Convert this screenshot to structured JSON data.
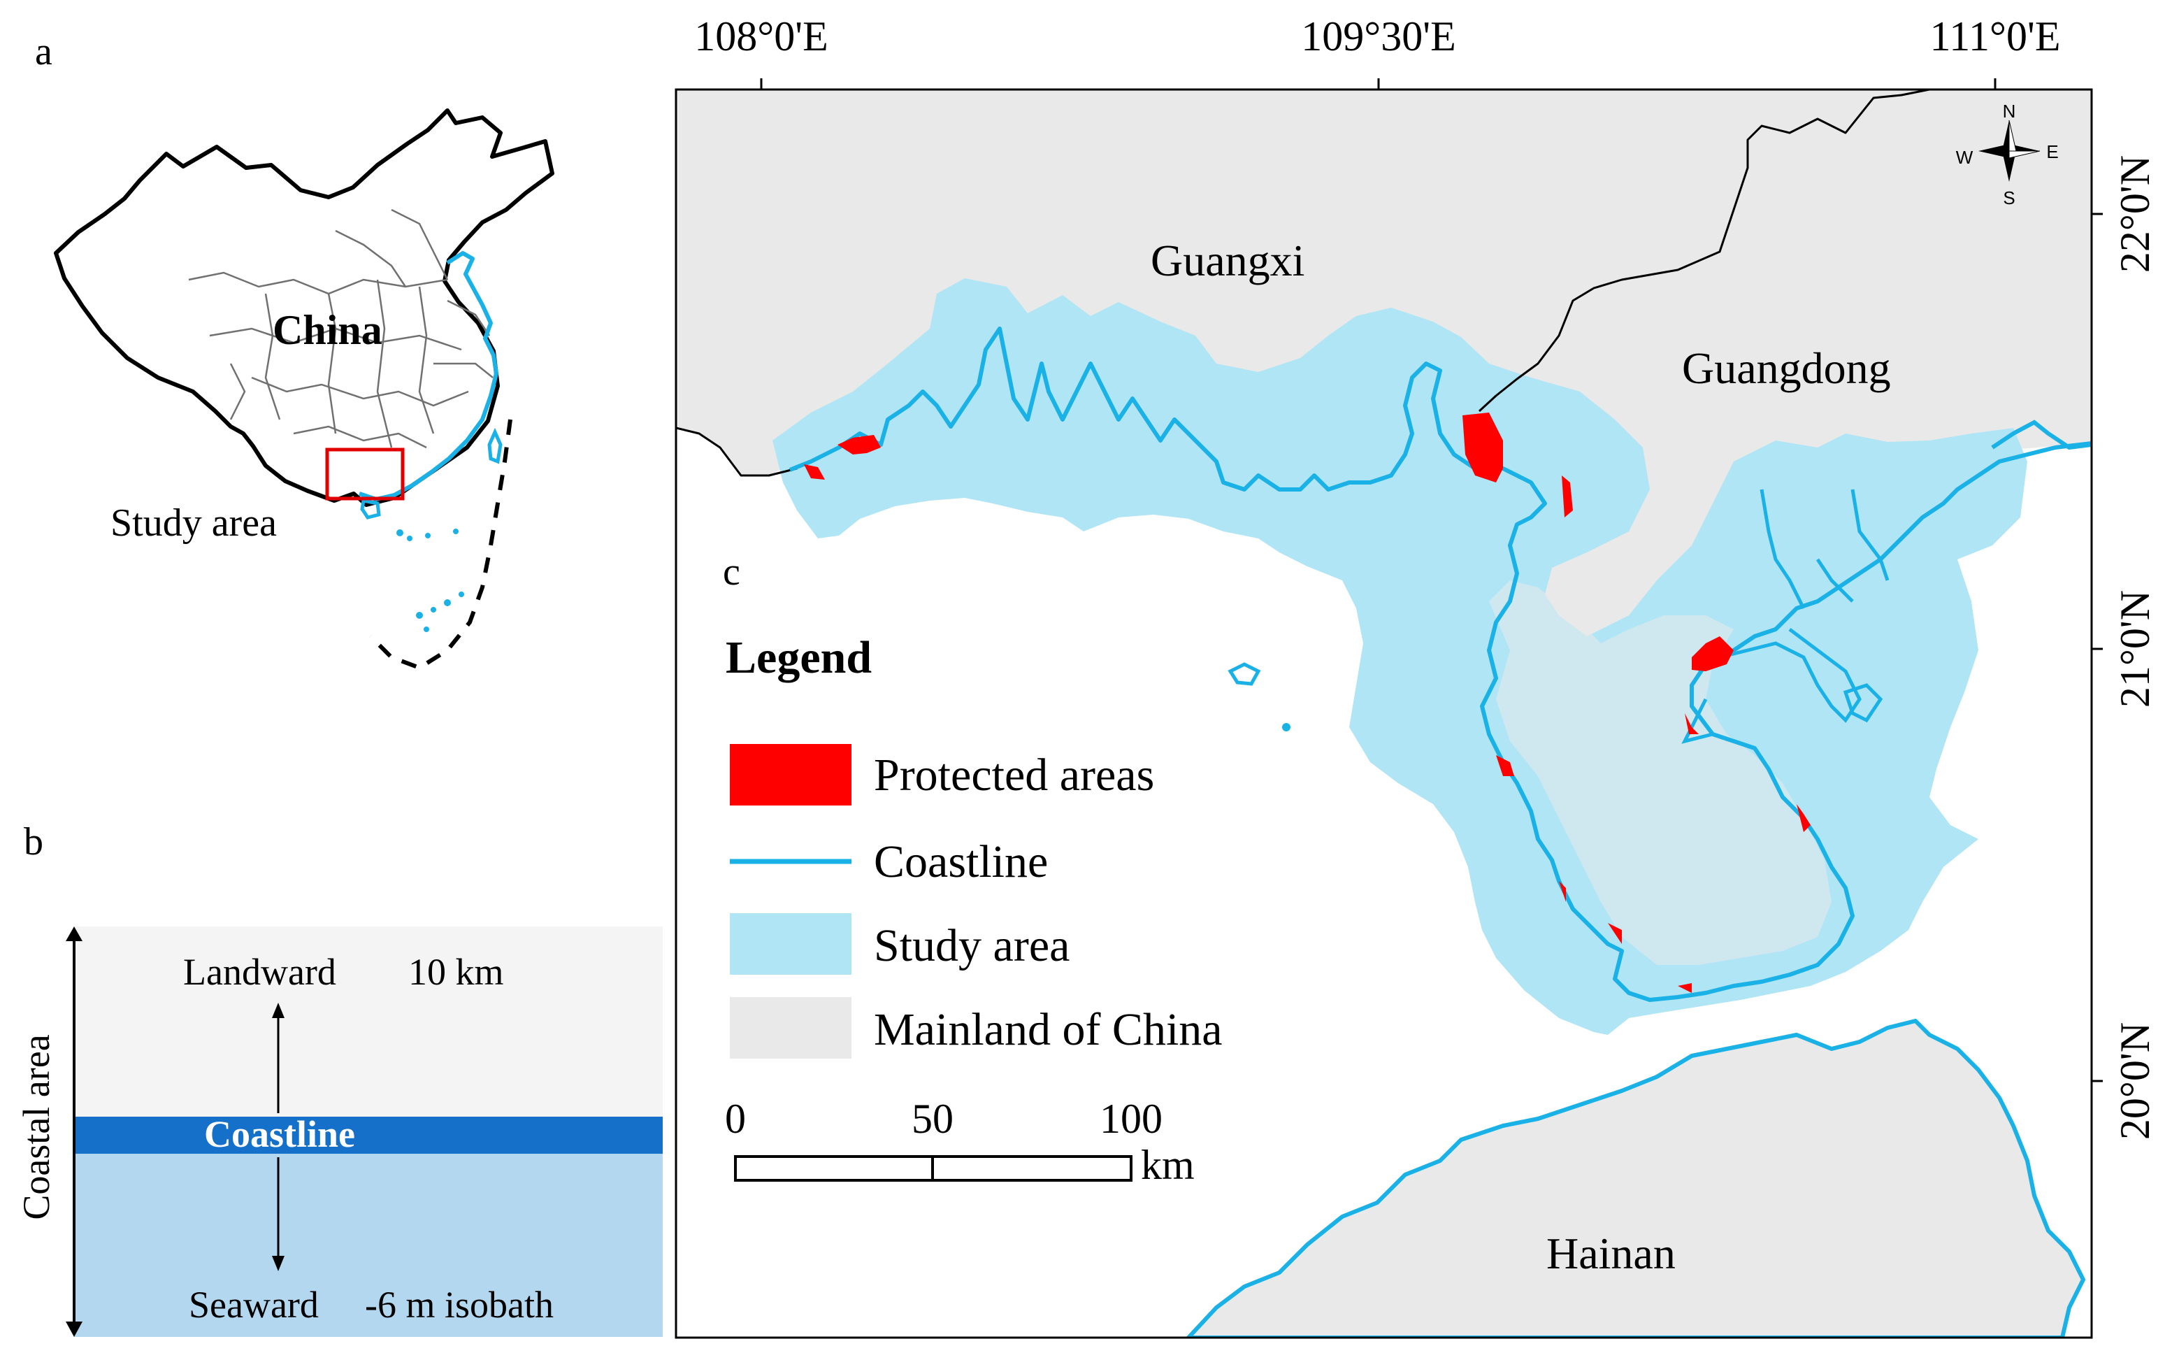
{
  "panels": {
    "a": {
      "letter": "a",
      "country_label": "China",
      "study_area_label": "Study area"
    },
    "b": {
      "letter": "b",
      "axis_label": "Coastal area",
      "landward_label": "Landward",
      "landward_distance": "10 km",
      "coastline_label": "Coastline",
      "seaward_label": "Seaward",
      "seaward_limit": "-6 m isobath"
    },
    "c": {
      "letter": "c",
      "top_ticks": [
        "108°0'E",
        "109°30'E",
        "111°0'E"
      ],
      "right_ticks": [
        "22°0'N",
        "21°0'N",
        "20°0'N"
      ],
      "region_labels": {
        "guangxi": "Guangxi",
        "guangdong": "Guangdong",
        "hainan": "Hainan"
      },
      "legend": {
        "title": "Legend",
        "items": [
          {
            "label": "Protected areas",
            "color": "#ff0000"
          },
          {
            "label": "Coastline",
            "color": "#1ab2e6"
          },
          {
            "label": "Study area",
            "color": "#b0e5f5"
          },
          {
            "label": "Mainland of China",
            "color": "#e9e9e9"
          }
        ]
      },
      "scalebar": {
        "labels": [
          "0",
          "50",
          "100"
        ],
        "unit": "km"
      },
      "compass": {
        "n": "N",
        "s": "S",
        "e": "E",
        "w": "W"
      }
    }
  },
  "colors": {
    "coastline": "#1ab2e6",
    "study_area": "#b0e5f5",
    "mainland": "#e9e9e9",
    "protected": "#ff0000",
    "panel_b_land": "#f4f4f4",
    "panel_b_sea": "#b4d7f0",
    "panel_b_coast": "#1470c8",
    "inset_box": "#e00000"
  }
}
